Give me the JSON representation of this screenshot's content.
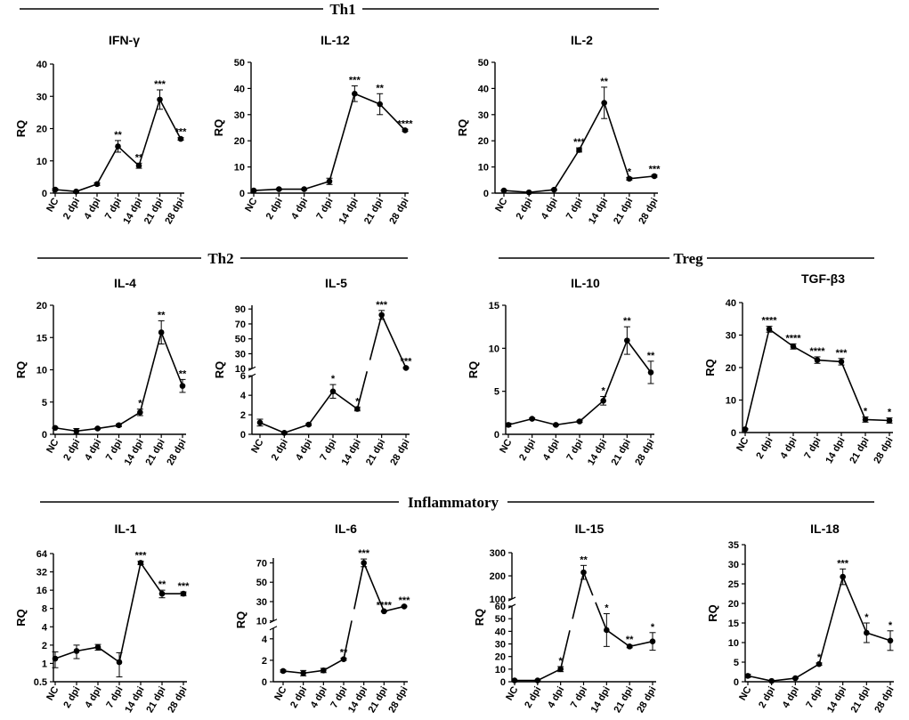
{
  "groups": [
    {
      "label": "Th1"
    },
    {
      "label": "Th2"
    },
    {
      "label": "Treg"
    },
    {
      "label": "Inflammatory"
    }
  ],
  "chart_data": [
    {
      "type": "line",
      "title": "IFN-γ",
      "ylabel": "RQ",
      "categories": [
        "NC",
        "2 dpi",
        "4 dpi",
        "7 dpi",
        "14 dpi",
        "21 dpi",
        "28 dpi"
      ],
      "values": [
        1.1,
        0.5,
        2.8,
        14.5,
        8.5,
        29.0,
        16.8
      ],
      "errors": [
        0.3,
        0.2,
        0.4,
        1.8,
        0.8,
        3.0,
        0.4
      ],
      "significance": [
        "",
        "",
        "",
        "**",
        "**",
        "***",
        "***"
      ],
      "yaxis": {
        "type": "linear",
        "ticks": [
          0,
          10,
          20,
          30,
          40
        ],
        "tick_labels": [
          "0",
          "10",
          "20",
          "30",
          "40"
        ]
      }
    },
    {
      "type": "line",
      "title": "IL-12",
      "ylabel": "RQ",
      "categories": [
        "NC",
        "2 dpi",
        "4 dpi",
        "7 dpi",
        "14 dpi",
        "21 dpi",
        "28 dpi"
      ],
      "values": [
        1.0,
        1.5,
        1.5,
        4.5,
        38.0,
        34.0,
        24.0
      ],
      "errors": [
        0.2,
        0.2,
        0.2,
        1.2,
        3.0,
        4.0,
        0.4
      ],
      "significance": [
        "",
        "",
        "",
        "",
        "***",
        "**",
        "****"
      ],
      "yaxis": {
        "type": "linear",
        "ticks": [
          0,
          10,
          20,
          30,
          40,
          50
        ],
        "tick_labels": [
          "0",
          "10",
          "20",
          "30",
          "40",
          "50"
        ]
      }
    },
    {
      "type": "line",
      "title": "IL-2",
      "ylabel": "RQ",
      "categories": [
        "NC",
        "2 dpi",
        "4 dpi",
        "7 dpi",
        "14 dpi",
        "21 dpi",
        "28 dpi"
      ],
      "values": [
        1.0,
        0.3,
        1.3,
        16.5,
        34.5,
        5.5,
        6.5
      ],
      "errors": [
        0.2,
        0.1,
        0.3,
        0.8,
        6.0,
        0.5,
        0.4
      ],
      "significance": [
        "",
        "",
        "",
        "***",
        "**",
        "*",
        "***"
      ],
      "yaxis": {
        "type": "linear",
        "ticks": [
          0,
          10,
          20,
          30,
          40,
          50
        ],
        "tick_labels": [
          "0",
          "10",
          "20",
          "30",
          "40",
          "50"
        ]
      }
    },
    {
      "type": "line",
      "title": "IL-4",
      "ylabel": "RQ",
      "categories": [
        "NC",
        "2 dpi",
        "4 dpi",
        "7 dpi",
        "14 dpi",
        "21 dpi",
        "28 dpi"
      ],
      "values": [
        1.0,
        0.5,
        0.9,
        1.4,
        3.4,
        15.8,
        7.5
      ],
      "errors": [
        0.1,
        0.4,
        0.1,
        0.2,
        0.5,
        1.8,
        1.0
      ],
      "significance": [
        "",
        "",
        "",
        "",
        "*",
        "**",
        "**"
      ],
      "yaxis": {
        "type": "linear",
        "ticks": [
          0,
          5,
          10,
          15,
          20
        ],
        "tick_labels": [
          "0",
          "5",
          "10",
          "15",
          "20"
        ]
      }
    },
    {
      "type": "line",
      "title": "IL-5",
      "ylabel": "RQ",
      "categories": [
        "NC",
        "2 dpi",
        "4 dpi",
        "7 dpi",
        "14 dpi",
        "21 dpi",
        "28 dpi"
      ],
      "values": [
        1.2,
        0.15,
        1.0,
        4.4,
        2.6,
        82.0,
        11.0
      ],
      "errors": [
        0.35,
        0.05,
        0.1,
        0.7,
        0.2,
        6.0,
        0.8
      ],
      "significance": [
        "",
        "",
        "",
        "*",
        "*",
        "***",
        "***"
      ],
      "yaxis": {
        "type": "broken",
        "segments": [
          {
            "range": [
              0,
              6
            ],
            "weight": 0.48
          },
          {
            "range": [
              10,
              95
            ],
            "weight": 0.52
          }
        ],
        "ticks": [
          0,
          2,
          4,
          6,
          10,
          30,
          50,
          70,
          90
        ],
        "tick_labels": [
          "0",
          "2",
          "4",
          "6",
          "10",
          "30",
          "50",
          "70",
          "90"
        ]
      }
    },
    {
      "type": "line",
      "title": "IL-10",
      "ylabel": "RQ",
      "categories": [
        "NC",
        "2 dpi",
        "4 dpi",
        "7 dpi",
        "14 dpi",
        "21 dpi",
        "28 dpi"
      ],
      "values": [
        1.1,
        1.8,
        1.1,
        1.5,
        3.9,
        10.9,
        7.2
      ],
      "errors": [
        0.2,
        0.1,
        0.1,
        0.1,
        0.5,
        1.6,
        1.3
      ],
      "significance": [
        "",
        "",
        "",
        "",
        "*",
        "**",
        "**"
      ],
      "yaxis": {
        "type": "linear",
        "ticks": [
          0,
          5,
          10,
          15
        ],
        "tick_labels": [
          "0",
          "5",
          "10",
          "15"
        ]
      }
    },
    {
      "type": "line",
      "title": "TGF-β3",
      "ylabel": "RQ",
      "categories": [
        "NC",
        "2 dpi",
        "4 dpi",
        "7 dpi",
        "14 dpi",
        "21 dpi",
        "28 dpi"
      ],
      "values": [
        1.0,
        31.8,
        26.5,
        22.3,
        21.8,
        4.0,
        3.7
      ],
      "errors": [
        0.2,
        0.9,
        0.8,
        1.0,
        1.0,
        0.8,
        0.8
      ],
      "significance": [
        "",
        "****",
        "****",
        "****",
        "***",
        "*",
        "*"
      ],
      "yaxis": {
        "type": "linear",
        "ticks": [
          0,
          10,
          20,
          30,
          40
        ],
        "tick_labels": [
          "0",
          "10",
          "20",
          "30",
          "40"
        ]
      }
    },
    {
      "type": "line",
      "title": "IL-1",
      "ylabel": "RQ",
      "categories": [
        "NC",
        "2 dpi",
        "4 dpi",
        "7 dpi",
        "14 dpi",
        "21 dpi",
        "28 dpi"
      ],
      "values": [
        1.2,
        1.6,
        1.85,
        1.05,
        45.0,
        14.0,
        14.0
      ],
      "errors": [
        0.35,
        0.4,
        0.2,
        0.45,
        3.0,
        2.0,
        1.0
      ],
      "significance": [
        "",
        "",
        "",
        "",
        "***",
        "**",
        "***"
      ],
      "yaxis": {
        "type": "log2",
        "range": [
          0.5,
          64
        ],
        "ticks": [
          0.5,
          1,
          2,
          4,
          8,
          16,
          32,
          64
        ],
        "tick_labels": [
          "0.5",
          "1",
          "2",
          "4",
          "8",
          "16",
          "32",
          "64"
        ]
      }
    },
    {
      "type": "line",
      "title": "IL-6",
      "ylabel": "RQ",
      "categories": [
        "NC",
        "2 dpi",
        "4 dpi",
        "7 dpi",
        "14 dpi",
        "21 dpi",
        "28 dpi"
      ],
      "values": [
        1.0,
        0.8,
        1.05,
        2.1,
        70.0,
        20.0,
        25.0
      ],
      "errors": [
        0.1,
        0.25,
        0.2,
        0.1,
        4.0,
        0.5,
        0.5
      ],
      "significance": [
        "",
        "",
        "",
        "**",
        "***",
        "****",
        "***"
      ],
      "yaxis": {
        "type": "broken",
        "segments": [
          {
            "range": [
              0,
              5
            ],
            "weight": 0.46
          },
          {
            "range": [
              10,
              75
            ],
            "weight": 0.54
          }
        ],
        "ticks": [
          0,
          2,
          4,
          10,
          30,
          50,
          70
        ],
        "tick_labels": [
          "0",
          "2",
          "4",
          "10",
          "30",
          "50",
          "70"
        ]
      }
    },
    {
      "type": "line",
      "title": "IL-15",
      "ylabel": "RQ",
      "categories": [
        "NC",
        "2 dpi",
        "4 dpi",
        "7 dpi",
        "14 dpi",
        "21 dpi",
        "28 dpi"
      ],
      "values": [
        1.0,
        1.0,
        10.0,
        215.0,
        41.0,
        28.0,
        32.0
      ],
      "errors": [
        0.3,
        0.3,
        2.0,
        30.0,
        13.0,
        1.0,
        7.0
      ],
      "significance": [
        "",
        "",
        "*",
        "**",
        "*",
        "**",
        "*"
      ],
      "yaxis": {
        "type": "broken",
        "segments": [
          {
            "range": [
              0,
              60
            ],
            "weight": 0.62
          },
          {
            "range": [
              100,
              300
            ],
            "weight": 0.38
          }
        ],
        "ticks": [
          0,
          10,
          20,
          30,
          40,
          50,
          60,
          100,
          200,
          300
        ],
        "tick_labels": [
          "0",
          "10",
          "20",
          "30",
          "40",
          "50",
          "60",
          "100",
          "200",
          "300"
        ]
      }
    },
    {
      "type": "line",
      "title": "IL-18",
      "ylabel": "RQ",
      "categories": [
        "NC",
        "2 dpi",
        "4 dpi",
        "7 dpi",
        "14 dpi",
        "21 dpi",
        "28 dpi"
      ],
      "values": [
        1.5,
        0.2,
        0.9,
        4.5,
        26.8,
        12.5,
        10.5
      ],
      "errors": [
        0.4,
        0.1,
        0.1,
        0.3,
        2.0,
        2.5,
        2.5
      ],
      "significance": [
        "",
        "",
        "",
        "*",
        "***",
        "*",
        "*"
      ],
      "yaxis": {
        "type": "linear",
        "ticks": [
          0,
          5,
          10,
          15,
          20,
          25,
          30,
          35
        ],
        "tick_labels": [
          "0",
          "5",
          "10",
          "15",
          "20",
          "25",
          "30",
          "35"
        ]
      }
    }
  ]
}
